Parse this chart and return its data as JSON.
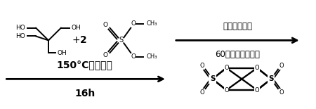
{
  "bg_color": "#ffffff",
  "line_color": "#000000",
  "top_arrow_label1": "催化剂和溶剂",
  "top_arrow_label2": "60摄氏度搅拌溶解",
  "bottom_arrow_label1": "150°C回流反应",
  "bottom_arrow_label2": "16h",
  "font_size_cn": 8.5,
  "font_size_small": 6.5,
  "font_size_label": 10
}
